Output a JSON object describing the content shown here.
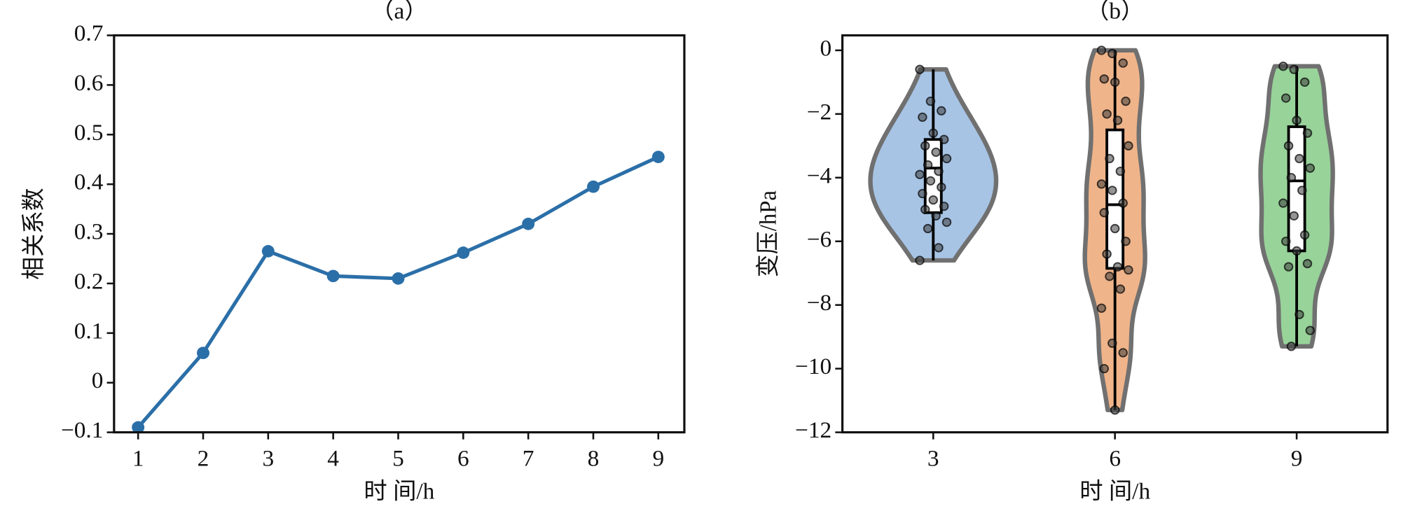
{
  "chart_data": [
    {
      "type": "line",
      "title": "（a）",
      "xlabel": "时 间/h",
      "ylabel": "相关系数",
      "color": "#2b6fa8",
      "x": [
        1,
        2,
        3,
        4,
        5,
        6,
        7,
        8,
        9
      ],
      "values": [
        -0.09,
        0.06,
        0.265,
        0.215,
        0.21,
        0.262,
        0.32,
        0.395,
        0.455
      ],
      "xlim": [
        0.63,
        9.4
      ],
      "xticks": [
        1,
        2,
        3,
        4,
        5,
        6,
        7,
        8,
        9
      ],
      "ylim": [
        -0.1,
        0.7
      ],
      "yticks": [
        {
          "value": -0.1,
          "label": "−0.1"
        },
        0,
        0.1,
        0.2,
        0.3,
        0.4,
        0.5,
        0.6,
        0.7
      ]
    },
    {
      "type": "violin",
      "title": "（b）",
      "xlabel": "时 间/h",
      "ylabel": "变压/hPa",
      "categories": [
        "3",
        "6",
        "9"
      ],
      "colors": [
        "#a7c4e5",
        "#f0b48a",
        "#98d39a"
      ],
      "box": [
        {
          "min": -6.6,
          "q1": -5.1,
          "median": -3.7,
          "q3": -2.8,
          "max": -0.6
        },
        {
          "min": -11.3,
          "q1": -6.85,
          "median": -4.85,
          "q3": -2.5,
          "max": 0
        },
        {
          "min": -9.3,
          "q1": -6.3,
          "median": -4.1,
          "q3": -2.4,
          "max": -0.5
        }
      ],
      "points": [
        [
          -0.6,
          -1.6,
          -1.9,
          -2.1,
          -2.6,
          -2.8,
          -3.0,
          -3.2,
          -3.4,
          -3.6,
          -3.8,
          -3.9,
          -4.1,
          -4.3,
          -4.5,
          -4.7,
          -4.9,
          -5.0,
          -5.2,
          -5.4,
          -5.6,
          -6.2,
          -6.6
        ],
        [
          0,
          -0.1,
          -0.4,
          -0.9,
          -1.0,
          -1.6,
          -2.0,
          -2.2,
          -3.0,
          -3.4,
          -3.8,
          -4.2,
          -4.4,
          -4.8,
          -5.1,
          -5.6,
          -6.0,
          -6.4,
          -6.8,
          -6.9,
          -7.1,
          -7.5,
          -8.1,
          -9.2,
          -9.5,
          -10.0,
          -11.3
        ],
        [
          -0.5,
          -0.6,
          -1.0,
          -1.5,
          -2.2,
          -2.6,
          -3.0,
          -3.4,
          -3.7,
          -4.0,
          -4.4,
          -4.8,
          -5.2,
          -5.8,
          -6.0,
          -6.3,
          -6.7,
          -6.8,
          -8.3,
          -8.8,
          -9.3
        ]
      ],
      "ylim": [
        -12,
        0.47
      ],
      "yticks": [
        {
          "value": -12,
          "label": "−12"
        },
        {
          "value": -10,
          "label": "−10"
        },
        {
          "value": -8,
          "label": "−8"
        },
        {
          "value": -6,
          "label": "−6"
        },
        {
          "value": -4,
          "label": "−4"
        },
        {
          "value": -2,
          "label": "−2"
        },
        0
      ]
    }
  ]
}
